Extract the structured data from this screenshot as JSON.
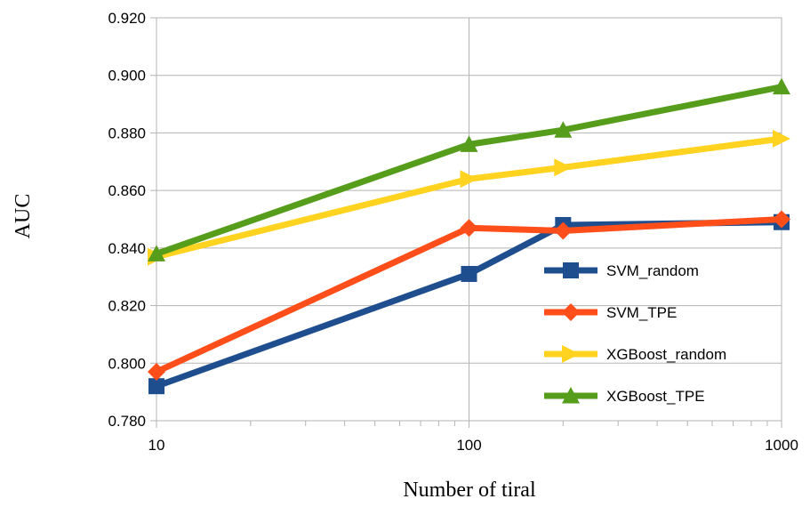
{
  "chart_data": {
    "type": "line",
    "xscale": "log",
    "x": [
      10,
      100,
      200,
      1000
    ],
    "xticks": [
      10,
      100,
      1000
    ],
    "xtick_labels": [
      "10",
      "100",
      "1000"
    ],
    "xlim": [
      10,
      1000
    ],
    "ylim": [
      0.78,
      0.92
    ],
    "yticks": [
      0.78,
      0.8,
      0.82,
      0.84,
      0.86,
      0.88,
      0.9,
      0.92
    ],
    "ytick_labels": [
      "0.780",
      "0.800",
      "0.820",
      "0.840",
      "0.860",
      "0.880",
      "0.900",
      "0.920"
    ],
    "xlabel": "Number of tiral",
    "ylabel": "AUC",
    "grid": "both",
    "legend_position": "right",
    "series": [
      {
        "name": "SVM_random",
        "marker": "square",
        "color": "#1F4E8F",
        "values": [
          0.792,
          0.831,
          0.848,
          0.849
        ]
      },
      {
        "name": "SVM_TPE",
        "marker": "diamond",
        "color": "#FF4E1A",
        "values": [
          0.797,
          0.847,
          0.846,
          0.85
        ]
      },
      {
        "name": "XGBoost_random",
        "marker": "triangle-right",
        "color": "#FFD320",
        "values": [
          0.837,
          0.864,
          0.868,
          0.878
        ]
      },
      {
        "name": "XGBoost_TPE",
        "marker": "triangle-up",
        "color": "#579D1C",
        "values": [
          0.838,
          0.876,
          0.881,
          0.896
        ]
      }
    ]
  }
}
